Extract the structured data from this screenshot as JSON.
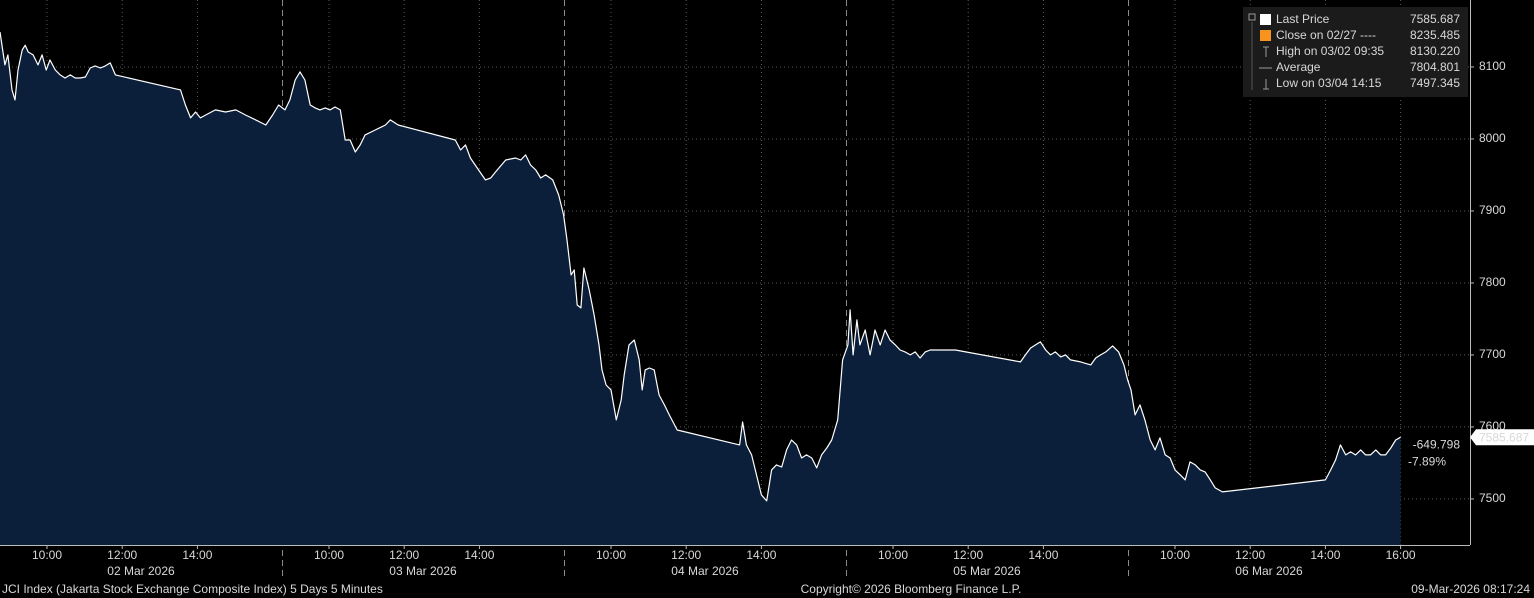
{
  "chart_data": {
    "type": "area",
    "line_color": "#ffffff",
    "fill_color": "#0b1f3a",
    "grid": true,
    "xlim": [
      8.75,
      16.25
    ],
    "ylim": [
      7436,
      8193
    ],
    "yticks": [
      7500,
      7600,
      7700,
      7800,
      7900,
      8000,
      8100
    ],
    "sessions": [
      {
        "date": "02 Mar 2026",
        "xticks": [
          {
            "value": 10,
            "label": "10:00"
          },
          {
            "value": 12,
            "label": "12:00"
          },
          {
            "value": 14,
            "label": "14:00"
          }
        ],
        "x": [
          8.75,
          8.88,
          8.96,
          9.07,
          9.15,
          9.23,
          9.34,
          9.42,
          9.5,
          9.63,
          9.76,
          9.87,
          9.98,
          10.08,
          10.22,
          10.35,
          10.48,
          10.62,
          10.75,
          10.88,
          11.02,
          11.15,
          11.28,
          11.42,
          11.55,
          11.68,
          11.82,
          13.55,
          13.68,
          13.82,
          13.95,
          14.08,
          14.22,
          14.48,
          14.75,
          15.02,
          15.28,
          15.55,
          15.82,
          16.0,
          16.16
        ],
        "values": [
          8148.6,
          8102.8,
          8116.7,
          8068.1,
          8054.2,
          8095.8,
          8123.6,
          8130.2,
          8120.8,
          8116.7,
          8102.8,
          8116.7,
          8095.8,
          8109.7,
          8095.8,
          8088.9,
          8084.7,
          8088.9,
          8084.7,
          8084.7,
          8086.1,
          8098.6,
          8101.4,
          8098.6,
          8101.4,
          8105.6,
          8088.9,
          8068.1,
          8047.2,
          8029.2,
          8037.5,
          8029.2,
          8033.3,
          8040.3,
          8037.5,
          8040.3,
          8033.3,
          8026.4,
          8019.4,
          8033.3,
          8047.2
        ]
      },
      {
        "date": "03 Mar 2026",
        "xticks": [
          {
            "value": 10,
            "label": "10:00"
          },
          {
            "value": 12,
            "label": "12:00"
          },
          {
            "value": 14,
            "label": "14:00"
          }
        ],
        "x": [
          8.83,
          8.96,
          9.1,
          9.23,
          9.36,
          9.5,
          9.63,
          9.76,
          9.9,
          10.03,
          10.16,
          10.3,
          10.43,
          10.56,
          10.7,
          10.83,
          10.96,
          11.23,
          11.5,
          11.63,
          11.84,
          13.36,
          13.5,
          13.63,
          13.76,
          13.98,
          14.16,
          14.3,
          14.43,
          14.7,
          14.96,
          15.1,
          15.23,
          15.36,
          15.5,
          15.63,
          15.76,
          15.95,
          16.11,
          16.24
        ],
        "values": [
          8040.3,
          8054.2,
          8081.9,
          8093.1,
          8081.9,
          8047.2,
          8043.1,
          8040.3,
          8043.1,
          8040.3,
          8044.4,
          8040.3,
          7998.6,
          7998.6,
          7981.9,
          7991.7,
          8005.6,
          8012.5,
          8019.4,
          8026.4,
          8019.4,
          7998.6,
          7984.7,
          7991.7,
          7973.6,
          7956.9,
          7943.1,
          7945.8,
          7954.2,
          7970.8,
          7973.6,
          7970.8,
          7977.8,
          7963.9,
          7956.9,
          7945.8,
          7950,
          7943.1,
          7922.2,
          7894.4
        ]
      },
      {
        "date": "04 Mar 2026",
        "xticks": [
          {
            "value": 10,
            "label": "10:00"
          },
          {
            "value": 12,
            "label": "12:00"
          },
          {
            "value": 14,
            "label": "14:00"
          }
        ],
        "x": [
          8.83,
          8.94,
          9.02,
          9.1,
          9.2,
          9.28,
          9.42,
          9.55,
          9.68,
          9.76,
          9.87,
          10.0,
          10.14,
          10.27,
          10.35,
          10.48,
          10.62,
          10.75,
          10.83,
          10.91,
          11.02,
          11.15,
          11.28,
          11.42,
          11.55,
          11.76,
          13.42,
          13.5,
          13.6,
          13.74,
          13.87,
          14.0,
          14.14,
          14.27,
          14.4,
          14.54,
          14.67,
          14.8,
          14.94,
          15.07,
          15.2,
          15.34,
          15.47,
          15.6,
          15.74,
          15.87,
          16.03,
          16.16
        ],
        "values": [
          7859.7,
          7811.1,
          7818.1,
          7769.4,
          7765.3,
          7820.8,
          7790.3,
          7755.6,
          7713.9,
          7679.2,
          7658.3,
          7651.4,
          7609.7,
          7637.5,
          7672.2,
          7713.9,
          7720.8,
          7693.1,
          7651.4,
          7679.2,
          7681.9,
          7679.2,
          7644.4,
          7630.6,
          7616.7,
          7595.8,
          7575,
          7606.9,
          7575,
          7561.1,
          7533.3,
          7505.6,
          7497.3,
          7540.3,
          7547.2,
          7544.4,
          7568.1,
          7581.9,
          7575,
          7556.9,
          7561.1,
          7556.9,
          7543.1,
          7561.1,
          7570.8,
          7581.9,
          7609.7,
          7693.1
        ]
      },
      {
        "date": "05 Mar 2026",
        "xticks": [
          {
            "value": 10,
            "label": "10:00"
          },
          {
            "value": 12,
            "label": "12:00"
          },
          {
            "value": 14,
            "label": "14:00"
          }
        ],
        "x": [
          8.8,
          8.86,
          8.94,
          9.04,
          9.12,
          9.26,
          9.39,
          9.52,
          9.66,
          9.79,
          9.92,
          10.06,
          10.19,
          10.32,
          10.46,
          10.59,
          10.72,
          10.86,
          10.99,
          11.26,
          11.66,
          13.39,
          13.52,
          13.66,
          13.79,
          13.92,
          14.06,
          14.19,
          14.32,
          14.46,
          14.59,
          14.72,
          14.99,
          15.26,
          15.39,
          15.52,
          15.66,
          15.84,
          16.0,
          16.14,
          16.24
        ],
        "values": [
          7713.9,
          7762.5,
          7700,
          7748.6,
          7713.9,
          7734.7,
          7700,
          7734.7,
          7713.9,
          7734.7,
          7720.8,
          7713.9,
          7706.9,
          7704.2,
          7700,
          7704.2,
          7695.8,
          7704.2,
          7706.9,
          7706.9,
          7706.9,
          7690.3,
          7700,
          7709.7,
          7713.9,
          7718.1,
          7706.9,
          7700,
          7704.2,
          7697.2,
          7700,
          7693.1,
          7690.3,
          7686.1,
          7695.8,
          7700,
          7704.2,
          7712.5,
          7704.2,
          7686.1,
          7665.3
        ]
      },
      {
        "date": "06 Mar 2026",
        "xticks": [
          {
            "value": 10,
            "label": "10:00"
          },
          {
            "value": 12,
            "label": "12:00"
          },
          {
            "value": 14,
            "label": "14:00"
          },
          {
            "value": 16,
            "label": "16:00"
          }
        ],
        "x": [
          8.83,
          8.94,
          9.07,
          9.2,
          9.34,
          9.47,
          9.6,
          9.74,
          9.87,
          10.0,
          10.14,
          10.27,
          10.4,
          10.54,
          10.67,
          10.8,
          10.94,
          11.07,
          11.26,
          14.0,
          14.14,
          14.27,
          14.4,
          14.54,
          14.67,
          14.8,
          14.94,
          15.07,
          15.2,
          15.34,
          15.47,
          15.6,
          15.74,
          15.87,
          16.0
        ],
        "values": [
          7651.4,
          7616.7,
          7630.6,
          7609.7,
          7581.9,
          7568.1,
          7584.7,
          7561.1,
          7556.9,
          7540.3,
          7533.3,
          7526.4,
          7551.4,
          7547.2,
          7540.3,
          7537.5,
          7526.4,
          7515.3,
          7509.7,
          7526.4,
          7540.3,
          7554.2,
          7575,
          7561.1,
          7565.3,
          7561.1,
          7568.1,
          7561.1,
          7561.1,
          7568.1,
          7561.1,
          7561.1,
          7570.8,
          7581.9,
          7585.687
        ]
      }
    ],
    "legend": [
      {
        "name": "Last Price",
        "value": 7585.687,
        "color": "#ffffff"
      },
      {
        "name": "Close on 02/27 ----",
        "value": 8235.485,
        "color": "#f7941d"
      },
      {
        "name": "High on 03/02 09:35",
        "value": 8130.22,
        "value_label": "8130.220"
      },
      {
        "name": "Average",
        "value": 7804.801
      },
      {
        "name": "Low on 03/04 14:15",
        "value": 7497.345
      }
    ],
    "change": -649.798,
    "change_pct": {
      "value": -7.89,
      "label": "-7.89%"
    },
    "change_color": "#f7941d",
    "footer": {
      "left": "JCI Index (Jakarta Stock Exchange Composite Index) 5 Days 5 Minutes",
      "center": "Copyright© 2026 Bloomberg Finance L.P.",
      "right": "09-Mar-2026 08:17:24"
    }
  }
}
